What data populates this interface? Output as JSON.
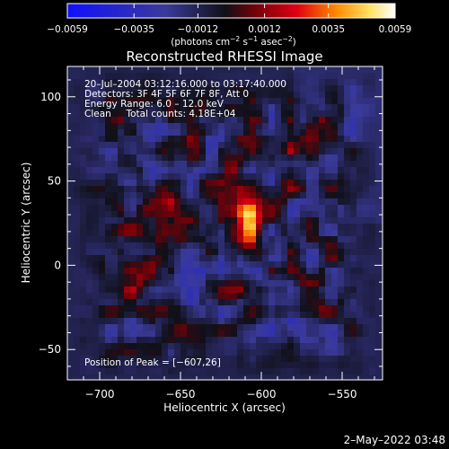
{
  "chart_data": {
    "type": "heatmap",
    "title": "Reconstructed RHESSI Image",
    "xlabel": "Heliocentric X (arcsec)",
    "ylabel": "Heliocentric Y (arcsec)",
    "xlim": [
      -720,
      -525
    ],
    "ylim": [
      -68,
      118
    ],
    "xticks": [
      -700,
      -650,
      -600,
      -550
    ],
    "yticks": [
      -50,
      0,
      50,
      100
    ],
    "colorbar": {
      "ticks": [
        -0.0059,
        -0.0035,
        -0.0012,
        0.0012,
        0.0035,
        0.0059
      ],
      "tick_labels": [
        "−0.0059",
        "−0.0035",
        "−0.0012",
        "0.0012",
        "0.0035",
        "0.0059"
      ],
      "range": [
        -0.0059,
        0.0059
      ]
    },
    "units_parts": [
      "(photons cm",
      "−2",
      " s",
      "−1",
      " asec",
      "−2",
      ")"
    ],
    "info_lines": [
      "20–Jul–2004 03:12:16.000 to 03:17:40.000",
      "Detectors: 3F 4F 5F 6F 7F 8F, Att 0",
      "Energy Range: 6.0 – 12.0 keV",
      "Clean     Total counts: 4.18E+04"
    ],
    "peak_label": "Position of Peak = [−607,26]",
    "peak": {
      "x": -607,
      "y": 26
    },
    "timestamp": "2–May–2022 03:48"
  },
  "colors": {
    "background": "#000000",
    "foreground": "#ffffff",
    "colormap": [
      "#0000ff",
      "#000000",
      "#8b0000",
      "#ff0000",
      "#ffd700",
      "#ffffff"
    ]
  }
}
